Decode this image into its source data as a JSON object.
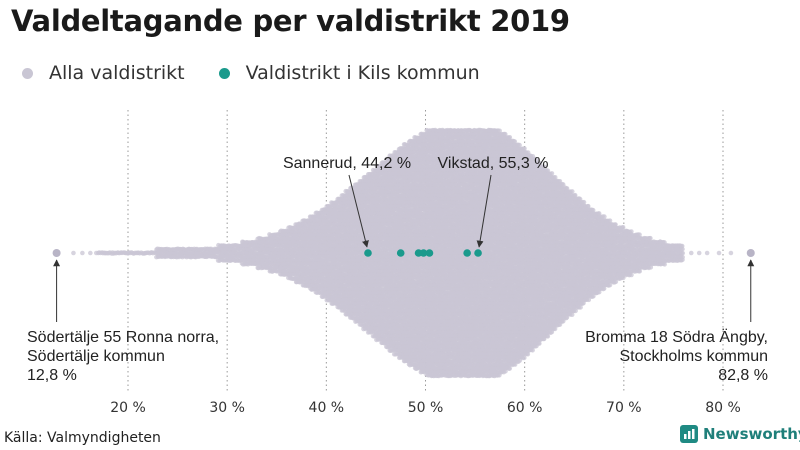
{
  "title": "Valdeltagande per valdistrikt 2019",
  "legend": [
    {
      "label": "Alla valdistrikt",
      "color": "#c9c6d4"
    },
    {
      "label": "Valdistrikt i Kils kommun",
      "color": "#1a9a8c"
    }
  ],
  "source": "Källa: Valmyndigheten",
  "brand": "Newsworthy",
  "chart_data": {
    "type": "scatter",
    "subtype": "beeswarm",
    "xlim": [
      10,
      85
    ],
    "ticks": [
      20,
      30,
      40,
      50,
      60,
      70,
      80
    ],
    "tick_labels": [
      "20 %",
      "30 %",
      "40 %",
      "50 %",
      "60 %",
      "70 %",
      "80 %"
    ],
    "grid": true,
    "series": [
      {
        "name": "Alla valdistrikt",
        "color": "#c9c6d4",
        "min": 12.8,
        "max": 82.8,
        "peak": 54
      },
      {
        "name": "Valdistrikt i Kils kommun",
        "color": "#1a9a8c",
        "values": [
          44.2,
          47.5,
          49.3,
          49.8,
          50.4,
          54.2,
          55.3
        ]
      }
    ],
    "annotations": [
      {
        "id": "sannerud",
        "text": "Sannerud, 44,2 %",
        "value": 44.2
      },
      {
        "id": "vikstad",
        "text": "Vikstad, 55,3 %",
        "value": 55.3
      },
      {
        "id": "min",
        "lines": [
          "Södertälje 55 Ronna norra,",
          "Södertälje kommun",
          "12,8 %"
        ],
        "value": 12.8
      },
      {
        "id": "max",
        "lines": [
          "Bromma 18 Södra Ängby,",
          "Stockholms kommun",
          "82,8 %"
        ],
        "value": 82.8
      }
    ]
  }
}
